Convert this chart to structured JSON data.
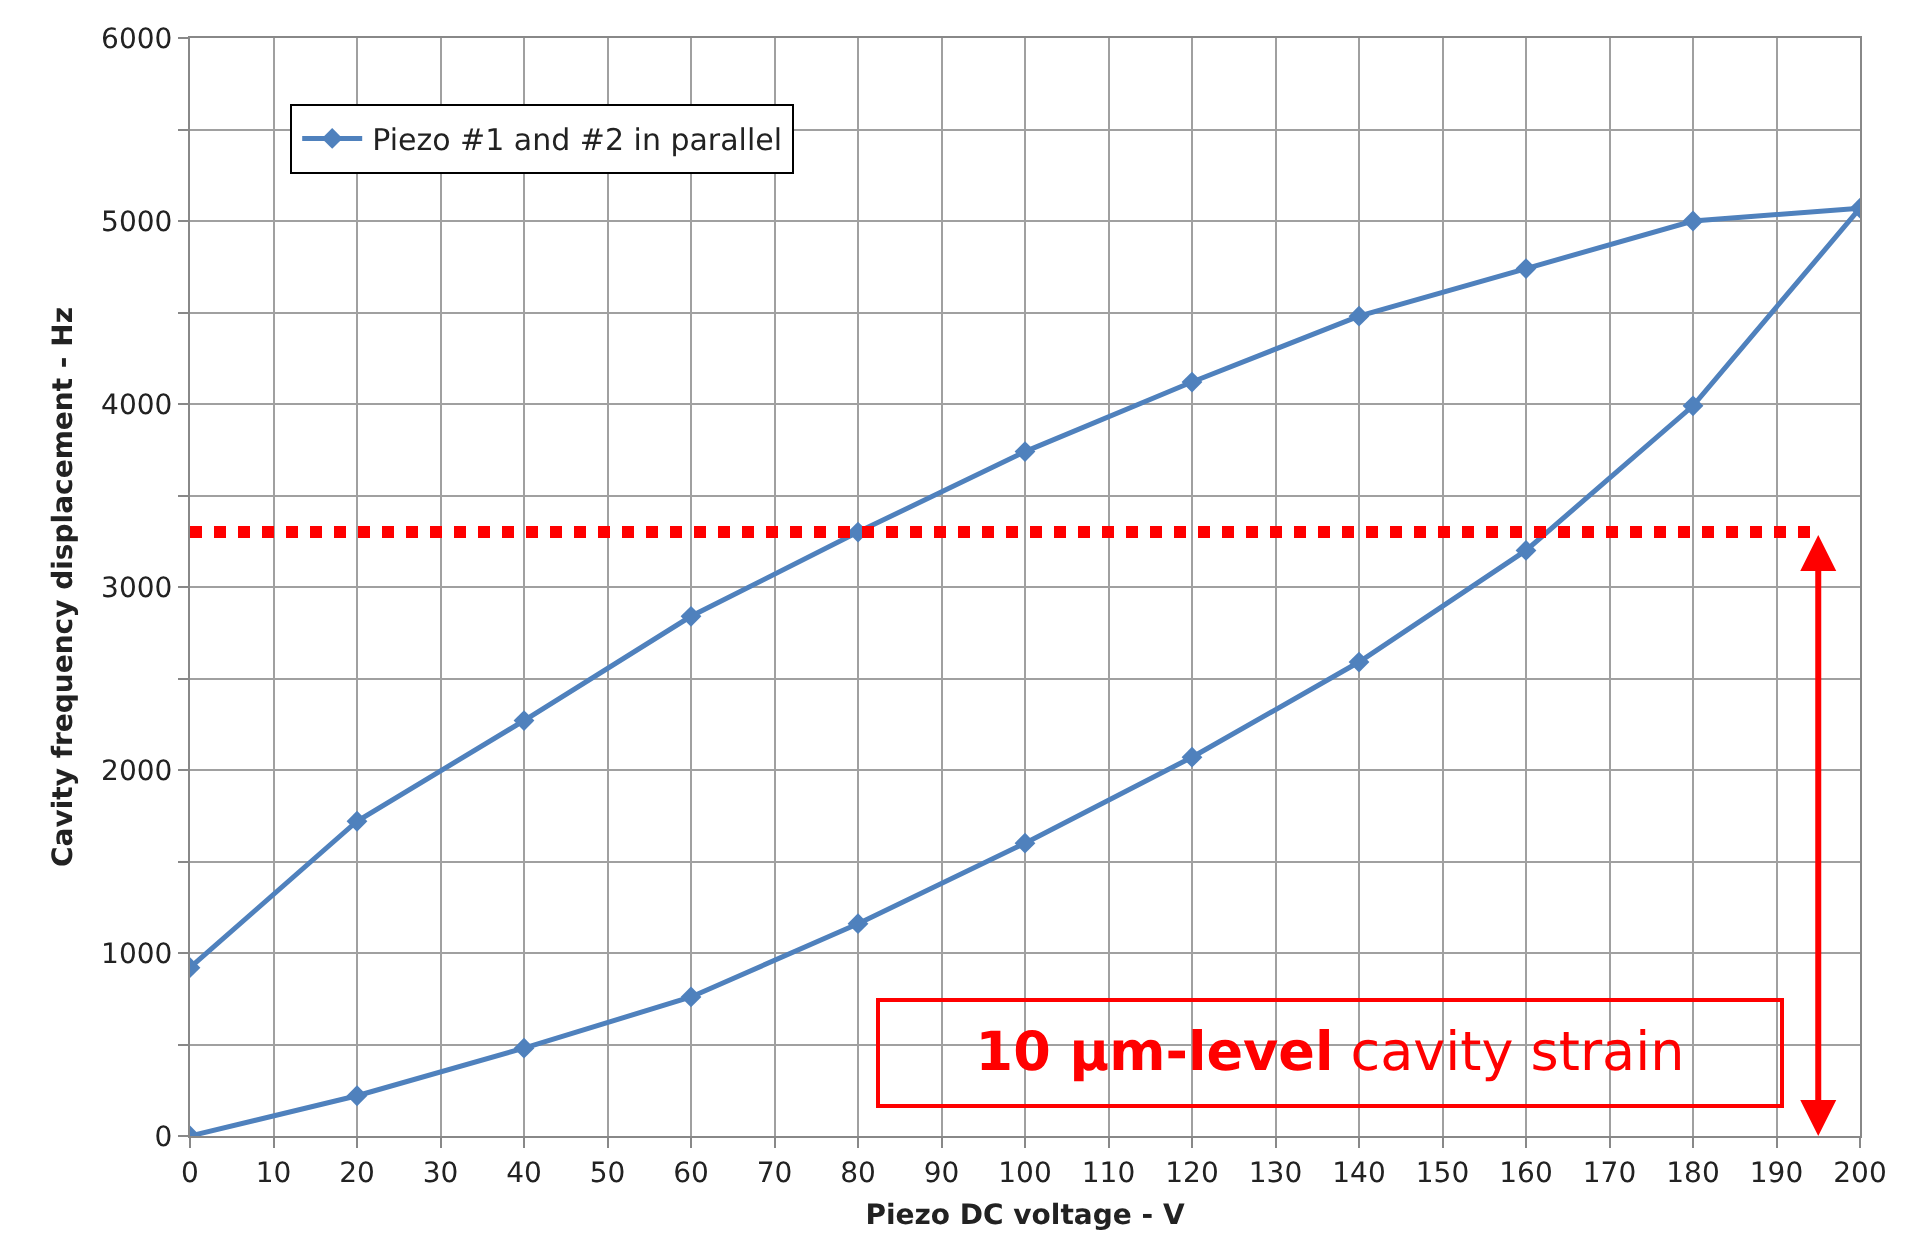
{
  "chart_data": {
    "type": "line",
    "xlabel": "Piezo DC voltage - V",
    "ylabel": "Cavity frequency displacement - Hz",
    "x": [
      0,
      20,
      40,
      60,
      80,
      100,
      120,
      140,
      160,
      180,
      200,
      180,
      160,
      140,
      120,
      100,
      80,
      60,
      40,
      20,
      0
    ],
    "series": [
      {
        "name": "Piezo #1 and #2 in parallel",
        "color": "#4f81bd",
        "values": [
          0,
          220,
          480,
          760,
          1160,
          1600,
          2070,
          2590,
          3200,
          3990,
          5070,
          5000,
          4740,
          4480,
          4120,
          3740,
          3300,
          2840,
          2270,
          1720,
          920
        ]
      }
    ],
    "xlim": [
      0,
      200
    ],
    "xticks": [
      0,
      10,
      20,
      30,
      40,
      50,
      60,
      70,
      80,
      90,
      100,
      110,
      120,
      130,
      140,
      150,
      160,
      170,
      180,
      190,
      200
    ],
    "ylim": [
      0,
      6000
    ],
    "yticks": [
      0,
      {
        "value": 500,
        "label": null
      },
      1000,
      {
        "value": 1500,
        "label": null
      },
      2000,
      {
        "value": 2500,
        "label": null
      },
      3000,
      {
        "value": 3500,
        "label": null
      },
      4000,
      {
        "value": 4500,
        "label": null
      },
      5000,
      {
        "value": 5500,
        "label": null
      },
      6000
    ],
    "ref_lines": [
      {
        "axis": "y",
        "value": 3300,
        "label": null,
        "color": "#ff0000",
        "line_style": "dotted"
      }
    ],
    "annotations": [
      "10 μm-level",
      "cavity strain"
    ],
    "grid": true,
    "legend": "top left",
    "marker": "diamond",
    "line_style": "solid"
  }
}
